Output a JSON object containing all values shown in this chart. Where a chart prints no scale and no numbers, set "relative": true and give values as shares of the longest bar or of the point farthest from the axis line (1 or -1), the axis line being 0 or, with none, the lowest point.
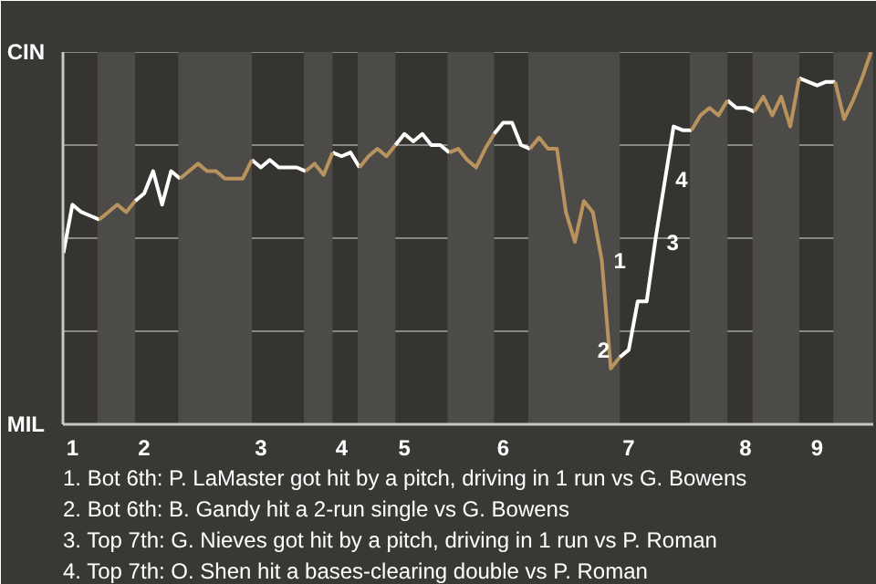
{
  "chart_data": {
    "type": "line",
    "relative": true,
    "categories": [
      null,
      "1",
      null,
      null,
      null,
      null,
      null,
      null,
      null,
      "2",
      null,
      null,
      null,
      null,
      null,
      null,
      null,
      null,
      null,
      null,
      null,
      null,
      "3",
      null,
      null,
      null,
      null,
      null,
      null,
      null,
      null,
      "4",
      null,
      null,
      null,
      null,
      null,
      null,
      "5",
      null,
      null,
      null,
      null,
      null,
      null,
      null,
      null,
      null,
      null,
      "6",
      null,
      null,
      null,
      null,
      null,
      null,
      null,
      null,
      null,
      null,
      null,
      null,
      null,
      "7",
      null,
      null,
      null,
      null,
      null,
      null,
      null,
      null,
      null,
      null,
      null,
      null,
      "8",
      null,
      null,
      null,
      null,
      null,
      null,
      null,
      "9",
      null,
      null,
      null,
      null,
      null,
      null
    ],
    "series": [
      {
        "color": "#ffffff",
        "values": [
          0.46,
          0.59,
          0.57,
          0.56,
          0.55,
          null,
          null,
          null,
          0.6,
          0.62,
          0.68,
          0.59,
          0.68,
          0.66,
          null,
          null,
          null,
          null,
          null,
          null,
          null,
          0.71,
          0.69,
          0.71,
          0.69,
          0.69,
          0.69,
          0.68,
          null,
          null,
          0.73,
          0.72,
          0.73,
          0.69,
          null,
          null,
          null,
          0.75,
          0.78,
          0.76,
          0.78,
          0.75,
          0.75,
          0.73,
          null,
          null,
          null,
          null,
          0.78,
          0.81,
          0.81,
          0.75,
          0.74,
          null,
          null,
          null,
          null,
          null,
          null,
          null,
          null,
          null,
          0.18,
          0.2,
          0.33,
          0.33,
          0.5,
          0.65,
          0.8,
          0.79,
          0.79,
          null,
          null,
          null,
          0.87,
          0.85,
          0.85,
          0.84,
          null,
          null,
          null,
          null,
          0.93,
          0.92,
          0.91,
          0.92,
          0.92,
          null,
          null,
          null,
          null
        ]
      },
      {
        "color": "#b8935e",
        "values": [
          null,
          null,
          null,
          null,
          0.55,
          0.57,
          0.59,
          0.57,
          0.6,
          null,
          null,
          null,
          null,
          0.66,
          0.68,
          0.7,
          0.68,
          0.68,
          0.66,
          0.66,
          0.66,
          0.71,
          null,
          null,
          null,
          null,
          null,
          0.68,
          0.7,
          0.67,
          0.73,
          null,
          null,
          0.69,
          0.72,
          0.74,
          0.72,
          0.75,
          null,
          null,
          null,
          null,
          null,
          0.73,
          0.74,
          0.71,
          0.69,
          0.74,
          0.78,
          null,
          null,
          null,
          0.74,
          0.77,
          0.74,
          0.74,
          0.57,
          0.49,
          0.6,
          0.57,
          0.44,
          0.15,
          0.18,
          null,
          null,
          null,
          null,
          null,
          null,
          null,
          0.79,
          0.83,
          0.85,
          0.83,
          0.87,
          null,
          null,
          0.84,
          0.88,
          0.83,
          0.88,
          0.8,
          0.93,
          null,
          null,
          null,
          0.92,
          0.82,
          0.87,
          0.93,
          1.0
        ]
      }
    ],
    "ref_lines": [
      {
        "axis": "y",
        "value": 0.25,
        "color": "#8a8886"
      },
      {
        "axis": "y",
        "value": 0.5,
        "color": "#8a8886"
      },
      {
        "axis": "y",
        "value": 0.75,
        "color": "#8a8886"
      },
      {
        "axis": "y",
        "value": 1,
        "color": "#8a8886"
      }
    ],
    "annotations": [
      "CIN",
      "MIL",
      "1",
      "2",
      "3",
      "4",
      "1. Bot 6th: P. LaMaster got hit by a pitch, driving in 1 run vs G. Bowens",
      "2. Bot 6th: B. Gandy hit a 2-run single vs G. Bowens",
      "3. Top 7th: G. Nieves got hit by a pitch, driving in 1 run vs P. Roman",
      "4. Top 7th: O. Shen hit a bases-clearing double vs P. Roman"
    ]
  }
}
